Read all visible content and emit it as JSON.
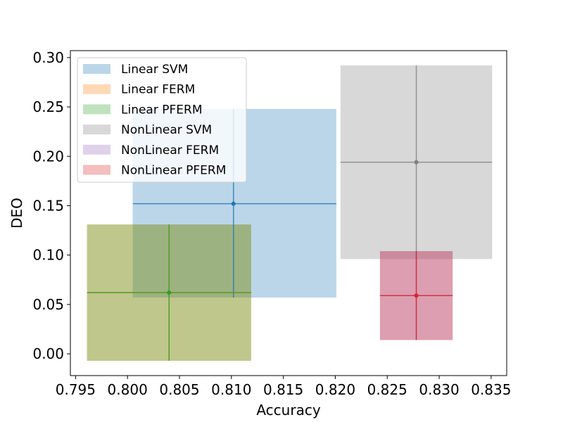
{
  "chart_data": {
    "type": "scatter",
    "title": "",
    "xlabel": "Accuracy",
    "ylabel": "DEO",
    "xlim": [
      0.7945,
      0.8365
    ],
    "ylim": [
      -0.022,
      0.307
    ],
    "x_ticks": [
      0.795,
      0.8,
      0.805,
      0.81,
      0.815,
      0.82,
      0.825,
      0.83,
      0.835
    ],
    "x_tick_labels": [
      "0.795",
      "0.800",
      "0.805",
      "0.810",
      "0.815",
      "0.820",
      "0.825",
      "0.830",
      "0.835"
    ],
    "y_ticks": [
      0.0,
      0.05,
      0.1,
      0.15,
      0.2,
      0.25,
      0.3
    ],
    "y_tick_labels": [
      "0.00",
      "0.05",
      "0.10",
      "0.15",
      "0.20",
      "0.25",
      "0.30"
    ],
    "grid": false,
    "legend_position": "top-left",
    "series": [
      {
        "name": "Linear SVM",
        "color": "#1f77b4",
        "x": 0.8102,
        "y": 0.152,
        "x_range": [
          0.8005,
          0.8201
        ],
        "y_range": [
          0.057,
          0.248
        ]
      },
      {
        "name": "Linear FERM",
        "color": "#ff7f0e",
        "x": 0.804,
        "y": 0.062,
        "x_range": [
          0.7961,
          0.8119
        ],
        "y_range": [
          -0.007,
          0.131
        ]
      },
      {
        "name": "Linear PFERM",
        "color": "#2ca02c",
        "x": 0.804,
        "y": 0.062,
        "x_range": [
          0.7961,
          0.8119
        ],
        "y_range": [
          -0.007,
          0.131
        ]
      },
      {
        "name": "NonLinear SVM",
        "color": "#7f7f7f",
        "x": 0.8278,
        "y": 0.194,
        "x_range": [
          0.8205,
          0.8351
        ],
        "y_range": [
          0.096,
          0.292
        ]
      },
      {
        "name": "NonLinear FERM",
        "color": "#9467bd",
        "x": 0.8278,
        "y": 0.059,
        "x_range": [
          0.8243,
          0.8313
        ],
        "y_range": [
          0.014,
          0.104
        ]
      },
      {
        "name": "NonLinear PFERM",
        "color": "#d62728",
        "x": 0.8278,
        "y": 0.059,
        "x_range": [
          0.8243,
          0.8313
        ],
        "y_range": [
          0.014,
          0.104
        ]
      }
    ]
  }
}
